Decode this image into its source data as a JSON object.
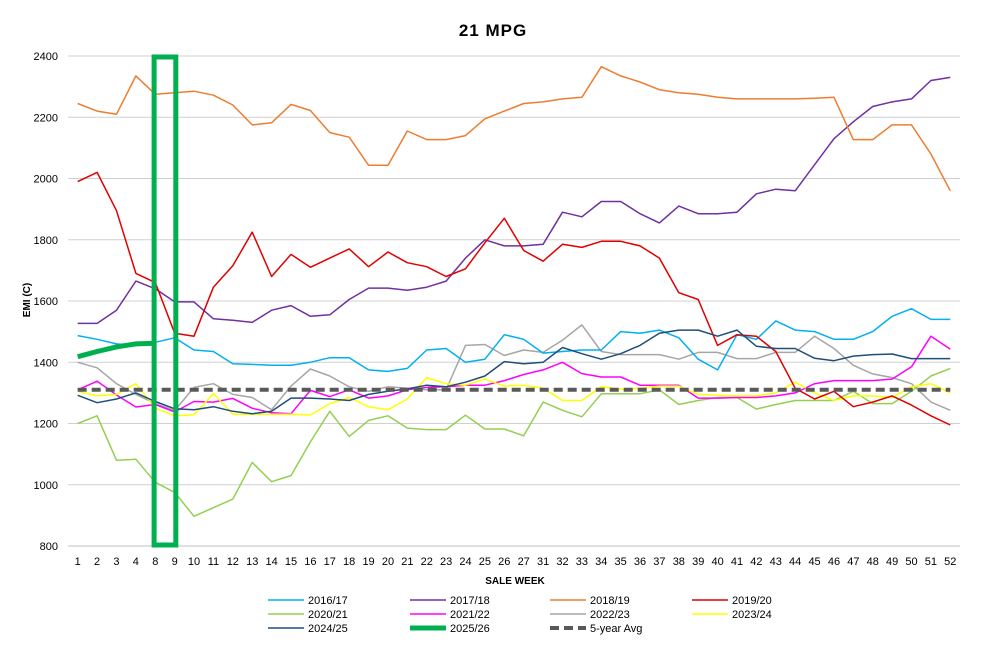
{
  "chart_data": {
    "type": "line",
    "title": "21 MPG",
    "xlabel": "SALE WEEK",
    "ylabel": "EMI (C)",
    "ylim": [
      800,
      2400
    ],
    "yticks": [
      "800",
      "1000",
      "1200",
      "1400",
      "1600",
      "1800",
      "2000",
      "2200",
      "2400"
    ],
    "grid": true,
    "legend_position": "bottom",
    "categories": [
      "1",
      "2",
      "3",
      "4",
      "8",
      "9",
      "10",
      "11",
      "12",
      "13",
      "14",
      "15",
      "16",
      "17",
      "18",
      "19",
      "20",
      "21",
      "22",
      "23",
      "24",
      "25",
      "26",
      "27",
      "31",
      "32",
      "33",
      "34",
      "35",
      "36",
      "37",
      "38",
      "39",
      "40",
      "41",
      "42",
      "43",
      "44",
      "45",
      "46",
      "47",
      "48",
      "49",
      "50",
      "51",
      "52"
    ],
    "highlight": {
      "from": "8",
      "to": "9",
      "color": "#00b050"
    },
    "series": [
      {
        "name": "2016/17",
        "color": "#00b0f0",
        "style": "solid",
        "width": 1.5,
        "values": [
          1487,
          1475,
          1460,
          1455,
          1465,
          1480,
          1440,
          1435,
          1395,
          1393,
          1390,
          1390,
          1400,
          1415,
          1415,
          1375,
          1370,
          1380,
          1440,
          1445,
          1400,
          1410,
          1490,
          1475,
          1430,
          1435,
          1440,
          1440,
          1500,
          1495,
          1505,
          1480,
          1410,
          1375,
          1490,
          1475,
          1535,
          1505,
          1500,
          1475,
          1475,
          1500,
          1550,
          1575,
          1540,
          1540
        ]
      },
      {
        "name": "2017/18",
        "color": "#7030a0",
        "style": "solid",
        "width": 1.5,
        "values": [
          1527,
          1527,
          1570,
          1665,
          1640,
          1597,
          1597,
          1542,
          1537,
          1530,
          1570,
          1585,
          1550,
          1555,
          1605,
          1642,
          1642,
          1635,
          1645,
          1665,
          1740,
          1800,
          1780,
          1780,
          1785,
          1890,
          1875,
          1925,
          1925,
          1885,
          1855,
          1910,
          1885,
          1885,
          1890,
          1950,
          1965,
          1960,
          2045,
          2130,
          2185,
          2235,
          2250,
          2260,
          2320,
          2330
        ]
      },
      {
        "name": "2018/19",
        "color": "#ed7d31",
        "style": "solid",
        "width": 1.5,
        "values": [
          2245,
          2220,
          2210,
          2335,
          2275,
          2280,
          2285,
          2272,
          2240,
          2175,
          2182,
          2242,
          2222,
          2150,
          2135,
          2043,
          2043,
          2155,
          2127,
          2127,
          2140,
          2195,
          2220,
          2245,
          2250,
          2260,
          2265,
          2365,
          2335,
          2315,
          2290,
          2280,
          2275,
          2265,
          2260,
          2260,
          2260,
          2260,
          2262,
          2265,
          2127,
          2127,
          2175,
          2175,
          2080,
          1960
        ]
      },
      {
        "name": "2019/20",
        "color": "#e00000",
        "style": "solid",
        "width": 1.5,
        "values": [
          1990,
          2020,
          1895,
          1690,
          1660,
          1495,
          1485,
          1645,
          1715,
          1825,
          1680,
          1752,
          1710,
          1740,
          1770,
          1712,
          1760,
          1725,
          1712,
          1680,
          1705,
          1790,
          1870,
          1765,
          1730,
          1785,
          1775,
          1795,
          1795,
          1780,
          1740,
          1627,
          1605,
          1455,
          1490,
          1485,
          1435,
          1315,
          1280,
          1305,
          1255,
          1270,
          1290,
          1260,
          1225,
          1195
        ]
      },
      {
        "name": "2020/21",
        "color": "#92d050",
        "style": "solid",
        "width": 1.5,
        "values": [
          1200,
          1225,
          1080,
          1083,
          1008,
          975,
          897,
          925,
          953,
          1073,
          1010,
          1030,
          1140,
          1240,
          1158,
          1210,
          1225,
          1185,
          1180,
          1180,
          1227,
          1182,
          1182,
          1160,
          1270,
          1243,
          1222,
          1297,
          1297,
          1297,
          1310,
          1262,
          1275,
          1285,
          1285,
          1247,
          1262,
          1275,
          1275,
          1275,
          1305,
          1265,
          1265,
          1305,
          1355,
          1380
        ]
      },
      {
        "name": "2021/22",
        "color": "#ff00ff",
        "style": "solid",
        "width": 1.5,
        "values": [
          1310,
          1338,
          1293,
          1254,
          1262,
          1238,
          1272,
          1270,
          1282,
          1250,
          1235,
          1232,
          1308,
          1288,
          1310,
          1283,
          1290,
          1310,
          1318,
          1320,
          1325,
          1325,
          1340,
          1360,
          1375,
          1400,
          1363,
          1352,
          1352,
          1325,
          1325,
          1325,
          1283,
          1283,
          1285,
          1285,
          1290,
          1300,
          1330,
          1340,
          1340,
          1340,
          1345,
          1385,
          1485,
          1443
        ]
      },
      {
        "name": "2022/23",
        "color": "#a6a6a6",
        "style": "solid",
        "width": 1.5,
        "values": [
          1400,
          1382,
          1330,
          1295,
          1265,
          1242,
          1318,
          1330,
          1295,
          1285,
          1245,
          1322,
          1378,
          1355,
          1320,
          1305,
          1320,
          1315,
          1310,
          1310,
          1455,
          1458,
          1422,
          1440,
          1432,
          1472,
          1522,
          1435,
          1425,
          1425,
          1425,
          1410,
          1432,
          1432,
          1412,
          1412,
          1432,
          1432,
          1485,
          1445,
          1390,
          1362,
          1350,
          1330,
          1270,
          1243
        ]
      },
      {
        "name": "2023/24",
        "color": "#ffff00",
        "style": "solid",
        "width": 1.5,
        "values": [
          1305,
          1290,
          1295,
          1330,
          1250,
          1225,
          1228,
          1298,
          1230,
          1230,
          1230,
          1230,
          1228,
          1265,
          1285,
          1255,
          1245,
          1280,
          1350,
          1330,
          1325,
          1345,
          1322,
          1325,
          1315,
          1275,
          1275,
          1320,
          1312,
          1315,
          1322,
          1322,
          1295,
          1292,
          1290,
          1290,
          1300,
          1335,
          1300,
          1275,
          1290,
          1290,
          1285,
          1320,
          1330,
          1300
        ]
      },
      {
        "name": "2024/25",
        "color": "#1f4e79",
        "style": "solid",
        "width": 1.5,
        "values": [
          1292,
          1268,
          1280,
          1300,
          1272,
          1248,
          1245,
          1255,
          1240,
          1232,
          1240,
          1283,
          1283,
          1280,
          1275,
          1295,
          1305,
          1313,
          1325,
          1320,
          1335,
          1355,
          1402,
          1395,
          1400,
          1448,
          1428,
          1410,
          1428,
          1455,
          1495,
          1505,
          1505,
          1485,
          1505,
          1452,
          1445,
          1445,
          1413,
          1405,
          1420,
          1425,
          1427,
          1412,
          1412,
          1412
        ]
      },
      {
        "name": "2025/26",
        "color": "#00b050",
        "style": "solid",
        "width": 5,
        "values": [
          1418,
          1435,
          1450,
          1460,
          1462,
          null,
          null,
          null,
          null,
          null,
          null,
          null,
          null,
          null,
          null,
          null,
          null,
          null,
          null,
          null,
          null,
          null,
          null,
          null,
          null,
          null,
          null,
          null,
          null,
          null,
          null,
          null,
          null,
          null,
          null,
          null,
          null,
          null,
          null,
          null,
          null,
          null,
          null,
          null,
          null,
          null
        ]
      },
      {
        "name": "5-year Avg",
        "color": "#595959",
        "style": "dashed",
        "width": 4,
        "values": [
          1310,
          1310,
          1310,
          1310,
          1310,
          1310,
          1310,
          1310,
          1310,
          1310,
          1310,
          1310,
          1310,
          1310,
          1310,
          1310,
          1310,
          1310,
          1310,
          1310,
          1310,
          1310,
          1310,
          1310,
          1310,
          1310,
          1310,
          1310,
          1310,
          1310,
          1310,
          1310,
          1310,
          1310,
          1310,
          1310,
          1310,
          1310,
          1310,
          1310,
          1310,
          1310,
          1310,
          1310,
          1310,
          1310
        ]
      }
    ]
  }
}
